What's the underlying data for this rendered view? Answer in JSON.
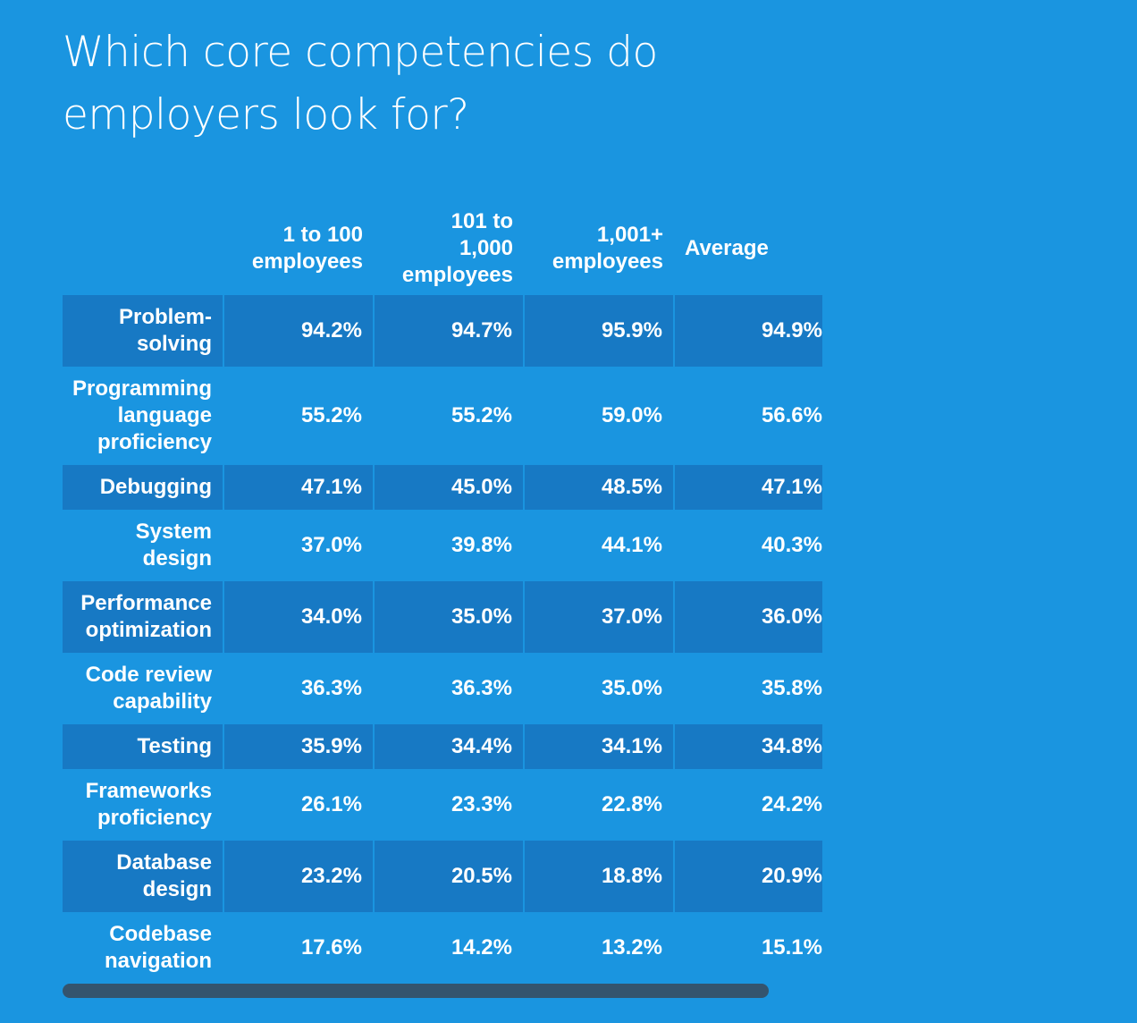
{
  "page": {
    "title": "Which core competencies do employers look for?"
  },
  "colors": {
    "background": "#1a95e0",
    "shaded_row": "#1779c4",
    "scrollbar": "#34546e",
    "text": "#ffffff"
  },
  "chart_data": {
    "type": "table",
    "title": "Which core competencies do employers look for?",
    "columns": [
      "",
      "1 to 100 employees",
      "101 to 1,000 employees",
      "1,001+ employees",
      "Average"
    ],
    "rows": [
      {
        "label": "Problem-solving",
        "values": [
          "94.2%",
          "94.7%",
          "95.9%",
          "94.9%"
        ]
      },
      {
        "label": "Programming language proficiency",
        "values": [
          "55.2%",
          "55.2%",
          "59.0%",
          "56.6%"
        ]
      },
      {
        "label": "Debugging",
        "values": [
          "47.1%",
          "45.0%",
          "48.5%",
          "47.1%"
        ]
      },
      {
        "label": "System design",
        "values": [
          "37.0%",
          "39.8%",
          "44.1%",
          "40.3%"
        ]
      },
      {
        "label": "Performance optimization",
        "values": [
          "34.0%",
          "35.0%",
          "37.0%",
          "36.0%"
        ]
      },
      {
        "label": "Code review capability",
        "values": [
          "36.3%",
          "36.3%",
          "35.0%",
          "35.8%"
        ]
      },
      {
        "label": "Testing",
        "values": [
          "35.9%",
          "34.4%",
          "34.1%",
          "34.8%"
        ]
      },
      {
        "label": "Frameworks proficiency",
        "values": [
          "26.1%",
          "23.3%",
          "22.8%",
          "24.2%"
        ]
      },
      {
        "label": "Database design",
        "values": [
          "23.2%",
          "20.5%",
          "18.8%",
          "20.9%"
        ]
      },
      {
        "label": "Codebase navigation",
        "values": [
          "17.6%",
          "14.2%",
          "13.2%",
          "15.1%"
        ]
      }
    ]
  }
}
